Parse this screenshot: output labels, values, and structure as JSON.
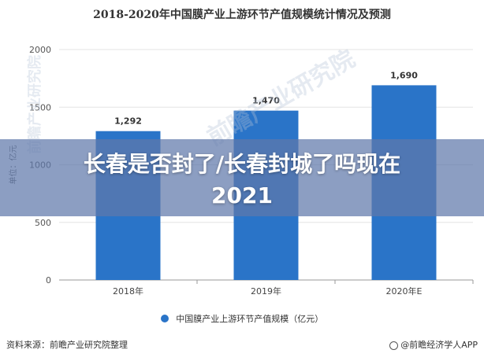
{
  "chart_data": {
    "type": "bar",
    "title": "2018-2020年中国膜产业上游环节产值规模统计情况及预测",
    "ylabel": "单位：亿元",
    "categories": [
      "2018年",
      "2019年",
      "2020年E"
    ],
    "series": [
      {
        "name": "中国膜产业上游环节产值规模（亿元）",
        "values": [
          1292,
          1470,
          1690
        ]
      }
    ],
    "data_labels": [
      "1,292",
      "1,470",
      "1,690"
    ],
    "yticks": [
      0,
      500,
      1000,
      1500,
      2000
    ],
    "ylim": [
      0,
      2000
    ],
    "grid": true,
    "legend": "bottom",
    "bar_color": "#2a74c8"
  },
  "overlay": {
    "banner_line1": "长春是否封了/长春封城了吗现在",
    "banner_line2": "2021"
  },
  "footer": {
    "source": "资料来源：前瞻产业研究院整理",
    "brand": "@前瞻经济学人APP"
  },
  "watermark": {
    "center": "前瞻产业研究院",
    "left": "前瞻产业研究院"
  },
  "icons": {
    "brand_logo": "circle-logo-icon",
    "legend_marker": "legend-dot-icon"
  }
}
